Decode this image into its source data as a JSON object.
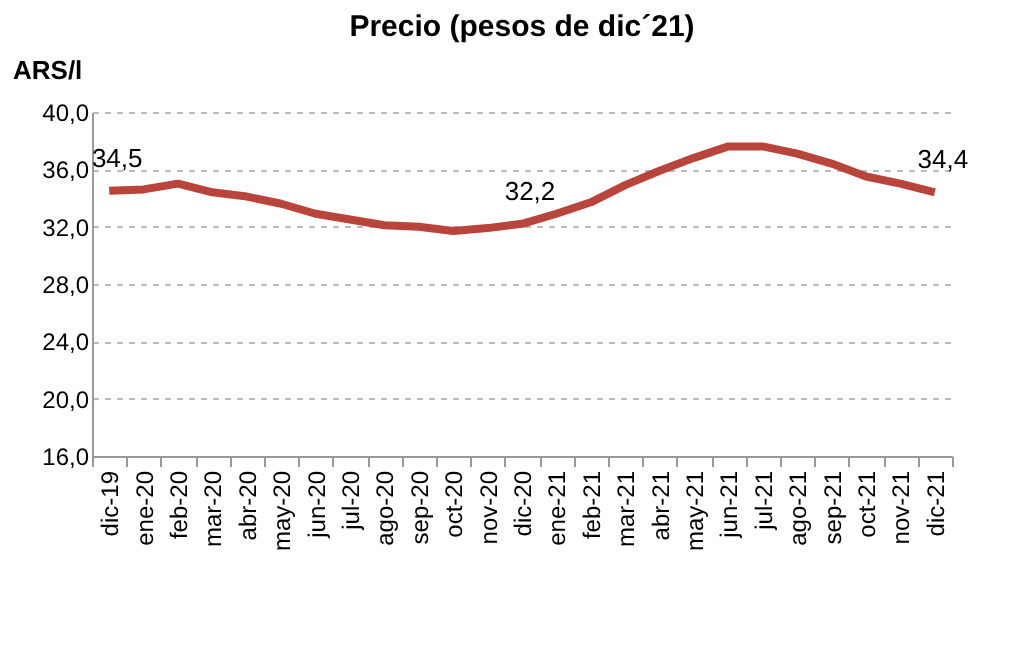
{
  "chart_data": {
    "type": "line",
    "title": "Precio (pesos de dic´21)",
    "ylabel": "ARS/l",
    "categories": [
      "dic-19",
      "ene-20",
      "feb-20",
      "mar-20",
      "abr-20",
      "may-20",
      "jun-20",
      "jul-20",
      "ago-20",
      "sep-20",
      "oct-20",
      "nov-20",
      "dic-20",
      "ene-21",
      "feb-21",
      "mar-21",
      "abr-21",
      "may-21",
      "jun-21",
      "jul-21",
      "ago-21",
      "sep-21",
      "oct-21",
      "nov-21",
      "dic-21"
    ],
    "series": [
      {
        "color": "#b9443c",
        "values": [
          34.5,
          34.6,
          35.0,
          34.4,
          34.1,
          33.6,
          32.9,
          32.5,
          32.1,
          32.0,
          31.7,
          31.9,
          32.2,
          32.9,
          33.7,
          34.9,
          35.9,
          36.8,
          37.6,
          37.6,
          37.1,
          36.4,
          35.5,
          35.0,
          34.4
        ],
        "value_labels": [
          "34,5",
          null,
          null,
          null,
          null,
          null,
          null,
          null,
          null,
          null,
          null,
          null,
          "32,2",
          null,
          null,
          null,
          null,
          null,
          null,
          null,
          null,
          null,
          null,
          null,
          "34,4"
        ]
      }
    ],
    "ylim": [
      16,
      40
    ],
    "yticks": [
      {
        "value": 16,
        "label": "16,0"
      },
      {
        "value": 20,
        "label": "20,0"
      },
      {
        "value": 24,
        "label": "24,0"
      },
      {
        "value": 28,
        "label": "28,0"
      },
      {
        "value": 32,
        "label": "32,0"
      },
      {
        "value": 36,
        "label": "36,0"
      },
      {
        "value": 40,
        "label": "40,0"
      }
    ],
    "grid": "y",
    "legend": false,
    "marker": "none",
    "line_style": "solid"
  }
}
